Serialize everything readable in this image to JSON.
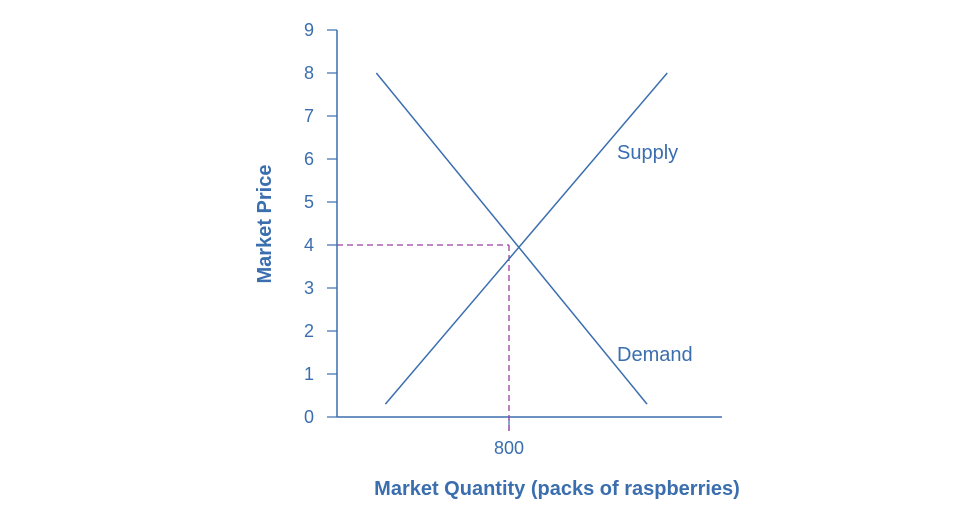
{
  "chart_data": {
    "type": "line",
    "xlabel": "Market Quantity (packs of raspberries)",
    "ylabel": "Market Price",
    "ylim": [
      0,
      9
    ],
    "y_ticks": [
      "0",
      "1",
      "2",
      "3",
      "4",
      "5",
      "6",
      "7",
      "8",
      "9"
    ],
    "x_ticks": [
      {
        "value": 800,
        "label": "800"
      }
    ],
    "xlim": [
      0,
      1800
    ],
    "grid": false,
    "series": [
      {
        "name": "Supply",
        "points": [
          {
            "x": 225,
            "y": 0.3
          },
          {
            "x": 1536,
            "y": 8.0
          }
        ]
      },
      {
        "name": "Demand",
        "points": [
          {
            "x": 183,
            "y": 8.0
          },
          {
            "x": 1442,
            "y": 0.3
          }
        ]
      }
    ],
    "equilibrium": {
      "x": 800,
      "y": 4
    },
    "colors": {
      "axis": "#3a6eae",
      "curve": "#3a6eae",
      "reference": "#9b3ea3"
    }
  }
}
